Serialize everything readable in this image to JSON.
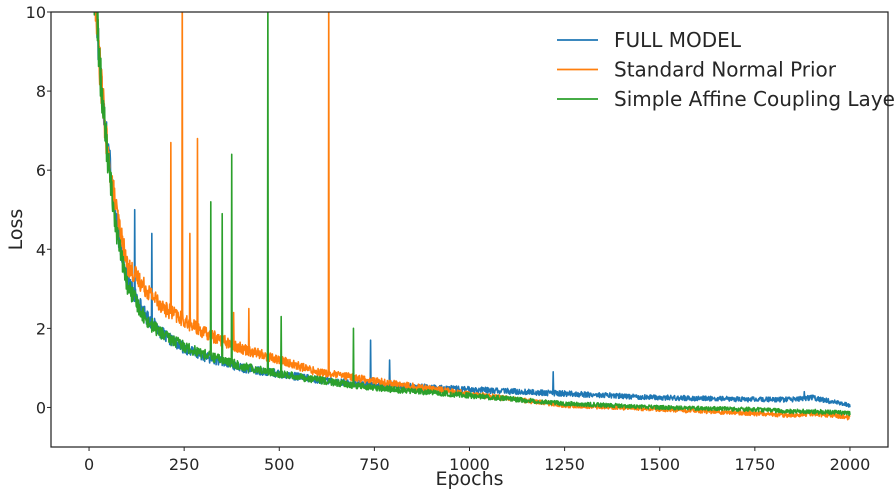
{
  "chart_data": {
    "type": "line",
    "title": "",
    "xlabel": "Epochs",
    "ylabel": "Loss",
    "xlim": [
      -100,
      2100
    ],
    "ylim": [
      -1,
      10
    ],
    "xticks": [
      0,
      250,
      500,
      750,
      1000,
      1250,
      1500,
      1750,
      2000
    ],
    "yticks": [
      0,
      2,
      4,
      6,
      8,
      10
    ],
    "xtick_labels": [
      "0",
      "250",
      "500",
      "750",
      "1000",
      "1250",
      "1500",
      "1750",
      "2000"
    ],
    "ytick_labels": [
      "0",
      "2",
      "4",
      "6",
      "8",
      "10"
    ],
    "grid": false,
    "legend_position": "top-right",
    "series": [
      {
        "name": "FULL MODEL",
        "color": "#1f77b4",
        "x": [
          0,
          20,
          30,
          50,
          75,
          100,
          150,
          200,
          250,
          300,
          350,
          400,
          500,
          600,
          700,
          800,
          1000,
          1250,
          1500,
          1750,
          1850,
          1900,
          2000
        ],
        "y": [
          12,
          10,
          8.5,
          6.5,
          4.5,
          3.2,
          2.3,
          1.8,
          1.5,
          1.3,
          1.15,
          1.0,
          0.85,
          0.7,
          0.6,
          0.55,
          0.45,
          0.35,
          0.25,
          0.2,
          0.2,
          0.25,
          0.05
        ],
        "spikes": [
          [
            55,
            6.5
          ],
          [
            120,
            5.0
          ],
          [
            165,
            4.4
          ],
          [
            740,
            1.7
          ],
          [
            790,
            1.2
          ],
          [
            1220,
            0.9
          ],
          [
            1880,
            0.4
          ]
        ]
      },
      {
        "name": "Standard Normal Prior",
        "color": "#ff7f0e",
        "x": [
          0,
          20,
          30,
          50,
          75,
          100,
          150,
          200,
          250,
          300,
          350,
          400,
          500,
          600,
          700,
          800,
          1000,
          1250,
          1500,
          1750,
          1850,
          1900,
          2000
        ],
        "y": [
          12,
          10,
          8.4,
          6.3,
          4.8,
          3.6,
          3.0,
          2.5,
          2.2,
          1.9,
          1.7,
          1.5,
          1.2,
          0.9,
          0.75,
          0.6,
          0.35,
          0.05,
          -0.05,
          -0.15,
          -0.2,
          -0.15,
          -0.25
        ],
        "spikes": [
          [
            215,
            6.7
          ],
          [
            245,
            11
          ],
          [
            265,
            4.4
          ],
          [
            285,
            6.8
          ],
          [
            380,
            2.4
          ],
          [
            420,
            2.5
          ],
          [
            630,
            11
          ]
        ]
      },
      {
        "name": "Simple Affine Coupling Layer",
        "color": "#2ca02c",
        "x": [
          0,
          20,
          30,
          50,
          75,
          100,
          150,
          200,
          250,
          300,
          350,
          400,
          500,
          600,
          700,
          800,
          1000,
          1250,
          1500,
          1750,
          1850,
          1900,
          2000
        ],
        "y": [
          12,
          10,
          8.4,
          6.2,
          4.3,
          3.1,
          2.2,
          1.8,
          1.55,
          1.35,
          1.2,
          1.05,
          0.85,
          0.7,
          0.55,
          0.45,
          0.3,
          0.1,
          0.0,
          -0.05,
          -0.1,
          -0.1,
          -0.15
        ],
        "spikes": [
          [
            55,
            5.7
          ],
          [
            320,
            5.2
          ],
          [
            350,
            4.9
          ],
          [
            375,
            6.4
          ],
          [
            470,
            11
          ],
          [
            505,
            2.3
          ],
          [
            695,
            2.0
          ]
        ]
      }
    ]
  }
}
